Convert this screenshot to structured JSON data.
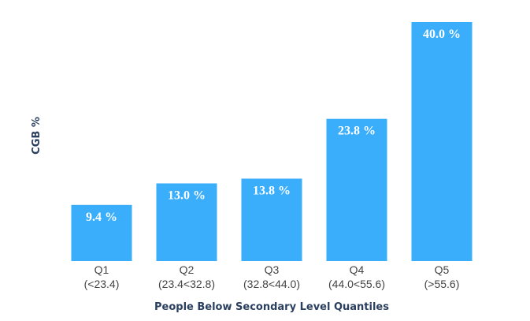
{
  "chart_data": {
    "type": "bar",
    "categories": [
      [
        "Q1",
        "(<23.4)"
      ],
      [
        "Q2",
        "(23.4<32.8)"
      ],
      [
        "Q3",
        "(32.8<44.0)"
      ],
      [
        "Q4",
        "(44.0<55.6)"
      ],
      [
        "Q5",
        "(>55.6)"
      ]
    ],
    "values": [
      9.4,
      13.0,
      13.8,
      23.8,
      40.0
    ],
    "data_labels": [
      "9.4 %",
      "13.0 %",
      "13.8 %",
      "23.8 %",
      "40.0 %"
    ],
    "xlabel": "People Below Secondary Level Quantiles",
    "ylabel": "CGB %",
    "ylim": [
      0,
      40.0
    ],
    "grid": false,
    "legend": false,
    "bar_color": "#3aaefa",
    "label_color": "#ffffff"
  }
}
